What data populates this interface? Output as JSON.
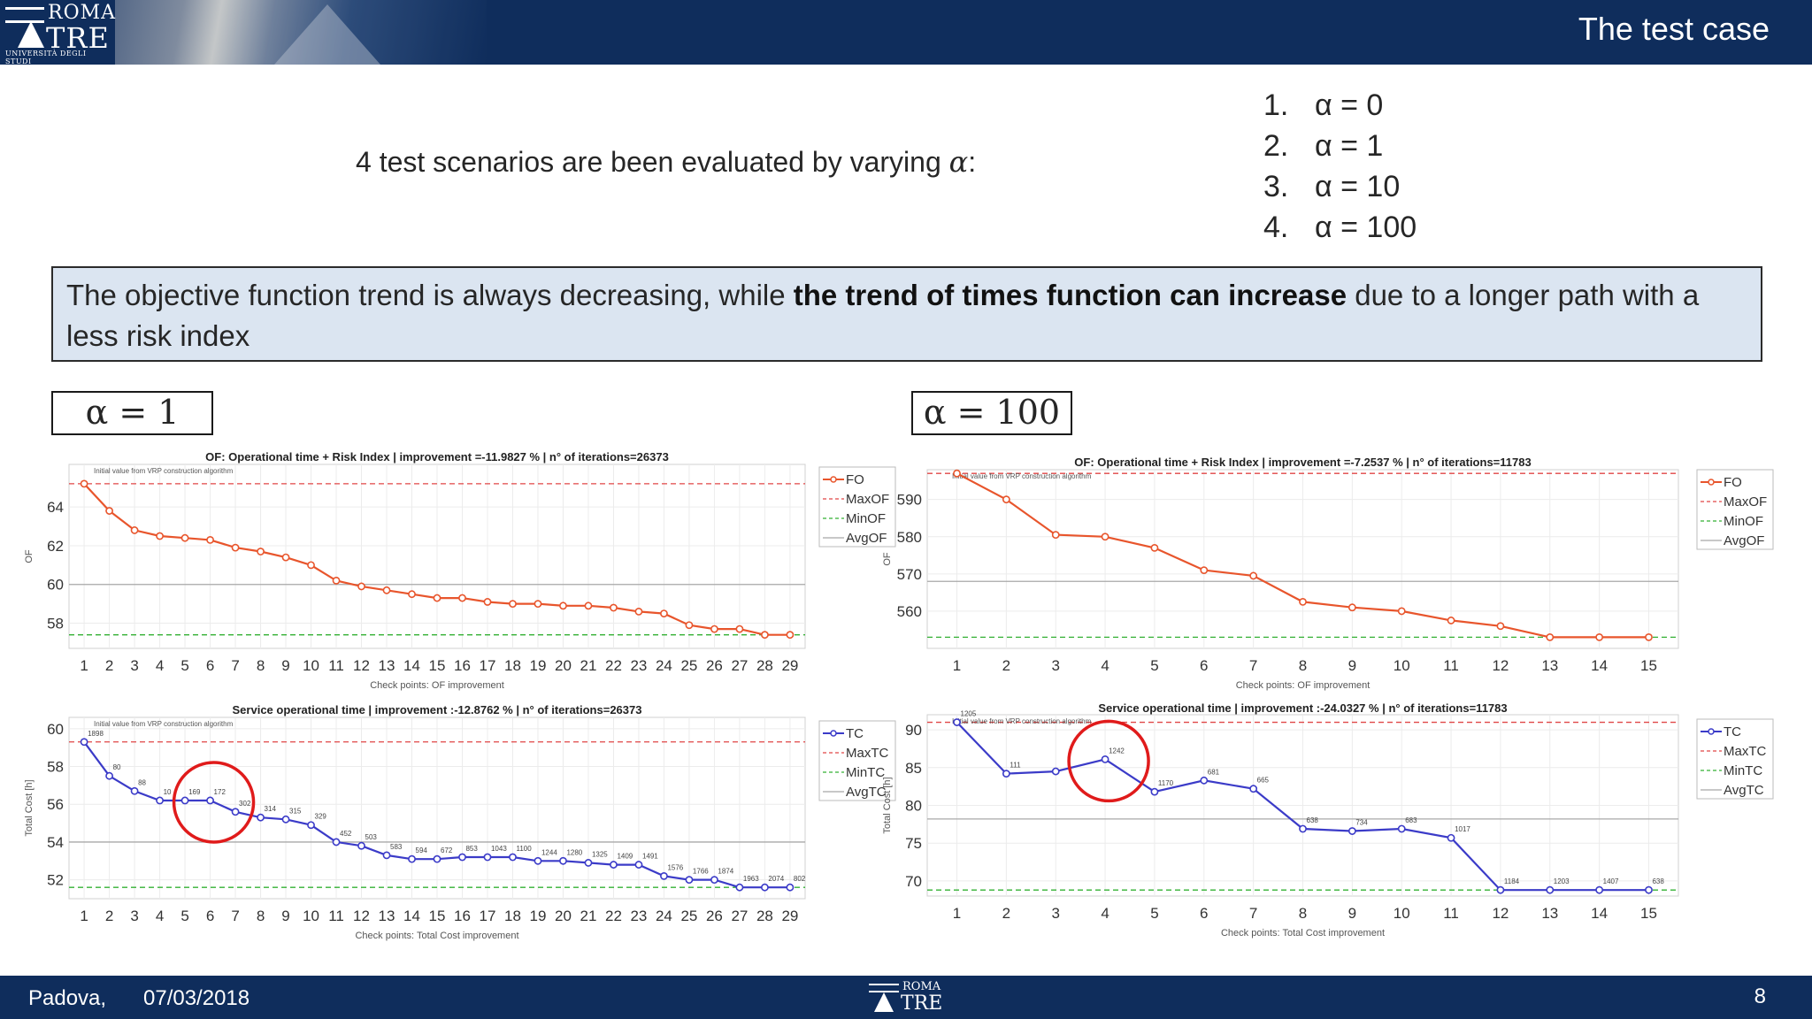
{
  "header": {
    "title": "The test case",
    "logo_top": "ROMA",
    "logo_main": "TRE",
    "logo_sub": "UNIVERSITÀ DEGLI STUDI"
  },
  "intro": {
    "text": "4 test scenarios are been evaluated by varying ",
    "symbol": "α",
    "suffix": ":"
  },
  "alpha_list": [
    {
      "num": "1.",
      "text": "α = 0"
    },
    {
      "num": "2.",
      "text": "α = 1"
    },
    {
      "num": "3.",
      "text": "α = 10"
    },
    {
      "num": "4.",
      "text": "α = 100"
    }
  ],
  "note": {
    "pre": "The objective function trend is always decreasing, while ",
    "bold": "the trend of times function can increase",
    "post": " due to a longer path with a less risk index"
  },
  "alpha_box_left": "α = 1",
  "alpha_box_right": "α = 100",
  "footer": {
    "city": "Padova,",
    "date": "07/03/2018",
    "page": "8",
    "logo_top": "ROMA",
    "logo_main": "TRE"
  },
  "colors": {
    "fo": "#e8552c",
    "tc": "#3b3bc8",
    "max": "#e04646",
    "min": "#33b033",
    "avg": "#a8a8a8",
    "highlight": "#e01b1b"
  },
  "chart_data": [
    {
      "type": "line",
      "title": "OF: Operational time + Risk Index | improvement =-11.9827 % | n° of iterations=26373",
      "xlabel": "Check points: OF improvement",
      "ylabel": "OF",
      "annotation": "Initial value from VRP construction algorithm",
      "x": [
        1,
        2,
        3,
        4,
        5,
        6,
        7,
        8,
        9,
        10,
        11,
        12,
        13,
        14,
        15,
        16,
        17,
        18,
        19,
        20,
        21,
        22,
        23,
        24,
        25,
        26,
        27,
        28,
        29
      ],
      "series": [
        {
          "name": "FO",
          "values": [
            65.2,
            63.8,
            62.8,
            62.5,
            62.4,
            62.3,
            61.9,
            61.7,
            61.4,
            61.0,
            60.2,
            59.9,
            59.7,
            59.5,
            59.3,
            59.3,
            59.1,
            59.0,
            59.0,
            58.9,
            58.9,
            58.8,
            58.6,
            58.5,
            57.9,
            57.7,
            57.7,
            57.4,
            57.4
          ]
        }
      ],
      "ref_lines": {
        "MaxOF": 65.2,
        "MinOF": 57.4,
        "AvgOF": 60.0
      },
      "legend": [
        "FO",
        "MaxOF",
        "MinOF",
        "AvgOF"
      ],
      "ylim": [
        56.7,
        66.2
      ],
      "yticks": [
        58,
        60,
        62,
        64
      ],
      "grid": true,
      "legend_position": "top-right"
    },
    {
      "type": "line",
      "title": "OF: Operational time + Risk Index | improvement =-7.2537 % | n° of iterations=11783",
      "xlabel": "Check points: OF improvement",
      "ylabel": "OF",
      "annotation": "Initial value from VRP construction algorithm",
      "x": [
        1,
        2,
        3,
        4,
        5,
        6,
        7,
        8,
        9,
        10,
        11,
        12,
        13,
        14,
        15
      ],
      "series": [
        {
          "name": "FO",
          "values": [
            597,
            590,
            580.5,
            580,
            577,
            571,
            569.5,
            562.5,
            561,
            560,
            557.5,
            556,
            553,
            553,
            553
          ]
        }
      ],
      "ref_lines": {
        "MaxOF": 597,
        "MinOF": 553,
        "AvgOF": 568
      },
      "legend": [
        "FO",
        "MaxOF",
        "MinOF",
        "AvgOF"
      ],
      "ylim": [
        550,
        598
      ],
      "yticks": [
        560,
        570,
        580,
        590
      ],
      "grid": true,
      "legend_position": "top-right"
    },
    {
      "type": "line",
      "title": "Service operational time | improvement :-12.8762 % | n° of iterations=26373",
      "xlabel": "Check points: Total Cost improvement",
      "ylabel": "Total Cost [h]",
      "annotation": "Initial value from VRP construction algorithm",
      "x": [
        1,
        2,
        3,
        4,
        5,
        6,
        7,
        8,
        9,
        10,
        11,
        12,
        13,
        14,
        15,
        16,
        17,
        18,
        19,
        20,
        21,
        22,
        23,
        24,
        25,
        26,
        27,
        28,
        29
      ],
      "series": [
        {
          "name": "TC",
          "values": [
            59.3,
            57.5,
            56.7,
            56.2,
            56.2,
            56.2,
            55.6,
            55.3,
            55.2,
            54.9,
            54.0,
            53.8,
            53.3,
            53.1,
            53.1,
            53.2,
            53.2,
            53.2,
            53.0,
            53.0,
            52.9,
            52.8,
            52.8,
            52.2,
            52.0,
            52.0,
            51.6,
            51.6,
            51.6
          ]
        }
      ],
      "point_labels": [
        "1898",
        "80",
        "88",
        "10",
        "169",
        "172",
        "302",
        "314",
        "315",
        "329",
        "452",
        "503",
        "583",
        "594",
        "672",
        "853",
        "1043",
        "1100",
        "1244",
        "1280",
        "1325",
        "1409",
        "1491",
        "1576",
        "1766",
        "1874",
        "1963",
        "2074",
        "802"
      ],
      "ref_lines": {
        "MaxTC": 59.3,
        "MinTC": 51.6,
        "AvgTC": 54.0
      },
      "legend": [
        "TC",
        "MaxTC",
        "MinTC",
        "AvgTC"
      ],
      "ylim": [
        51.0,
        60.6
      ],
      "yticks": [
        52,
        54,
        56,
        58,
        60
      ],
      "grid": true,
      "legend_position": "top-right",
      "highlight_x": 6
    },
    {
      "type": "line",
      "title": "Service operational time | improvement :-24.0327 % | n° of iterations=11783",
      "xlabel": "Check points: Total Cost improvement",
      "ylabel": "Total Cost [h]",
      "annotation": "Initial value from VRP construction algorithm",
      "x": [
        1,
        2,
        3,
        4,
        5,
        6,
        7,
        8,
        9,
        10,
        11,
        12,
        13,
        14,
        15
      ],
      "series": [
        {
          "name": "TC",
          "values": [
            91.0,
            84.2,
            84.5,
            86.1,
            81.8,
            83.3,
            82.2,
            76.9,
            76.6,
            76.9,
            75.7,
            68.8,
            68.8,
            68.8,
            68.8
          ]
        }
      ],
      "point_labels": [
        "1205",
        "111",
        "",
        "1242",
        "1170",
        "681",
        "665",
        "638",
        "734",
        "683",
        "1017",
        "1184",
        "1203",
        "1407",
        "638"
      ],
      "ref_lines": {
        "MaxTC": 91.0,
        "MinTC": 68.8,
        "AvgTC": 78.2
      },
      "legend": [
        "TC",
        "MaxTC",
        "MinTC",
        "AvgTC"
      ],
      "ylim": [
        68,
        92
      ],
      "yticks": [
        70,
        75,
        80,
        85,
        90
      ],
      "grid": true,
      "legend_position": "top-right",
      "highlight_x": 4
    }
  ]
}
